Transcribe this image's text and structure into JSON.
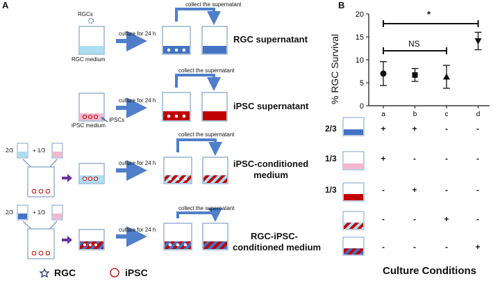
{
  "panel_a": {
    "letter": "A",
    "collect_label": "collect the supernatant",
    "culture_label": "culture for 24 h",
    "row1": {
      "cells_label": "RGCs",
      "medium_label": "RGC medium",
      "title": "RGC supernatant"
    },
    "row2": {
      "medium_label": "iPSC medium",
      "cells_label": "iPSCs",
      "title": "iPSC supernatant"
    },
    "row3": {
      "frac_left": "2/3",
      "frac_plus": "+ 1/3",
      "title_line1": "iPSC-conditioned",
      "title_line2": "medium"
    },
    "row4": {
      "frac_left": "2/3",
      "frac_plus": "+ 1/3",
      "title_line1": "RGC-iPSC-",
      "title_line2": "conditioned medium"
    },
    "legend": {
      "rgc": "RGC",
      "ipsc": "iPSC"
    }
  },
  "panel_b": {
    "letter": "B",
    "significance": {
      "star": "*",
      "ns": "NS"
    },
    "conditions": {
      "title": "Culture Conditions",
      "rows": [
        {
          "label": "2/3",
          "signs": [
            "+",
            "+",
            "-",
            "-"
          ]
        },
        {
          "label": "1/3",
          "signs": [
            "+",
            "-",
            "-",
            "-"
          ]
        },
        {
          "label": "1/3",
          "signs": [
            "-",
            "+",
            "-",
            "-"
          ]
        },
        {
          "label": "",
          "signs": [
            "-",
            "-",
            "+",
            "-"
          ]
        },
        {
          "label": "",
          "signs": [
            "-",
            "-",
            "-",
            "+"
          ]
        }
      ]
    }
  },
  "colors": {
    "blue": "#4472c4",
    "arrow": "#4f7ecb",
    "red": "#c00000",
    "pink": "#f4b8cf",
    "light_blue": "#a9dff0",
    "purple": "#7030a0"
  },
  "chart_data": {
    "type": "scatter",
    "title": "",
    "xlabel": "",
    "ylabel": "% RGC Survival",
    "categories": [
      "a",
      "b",
      "c",
      "d"
    ],
    "values": [
      7.0,
      6.7,
      6.3,
      14.1
    ],
    "errors": [
      2.6,
      1.4,
      2.5,
      1.9
    ],
    "markers": [
      "circle",
      "square",
      "triangle",
      "triangle-down"
    ],
    "ylim": [
      0,
      20
    ],
    "yticks": [
      0,
      5,
      10,
      15,
      20
    ],
    "grid": false
  }
}
